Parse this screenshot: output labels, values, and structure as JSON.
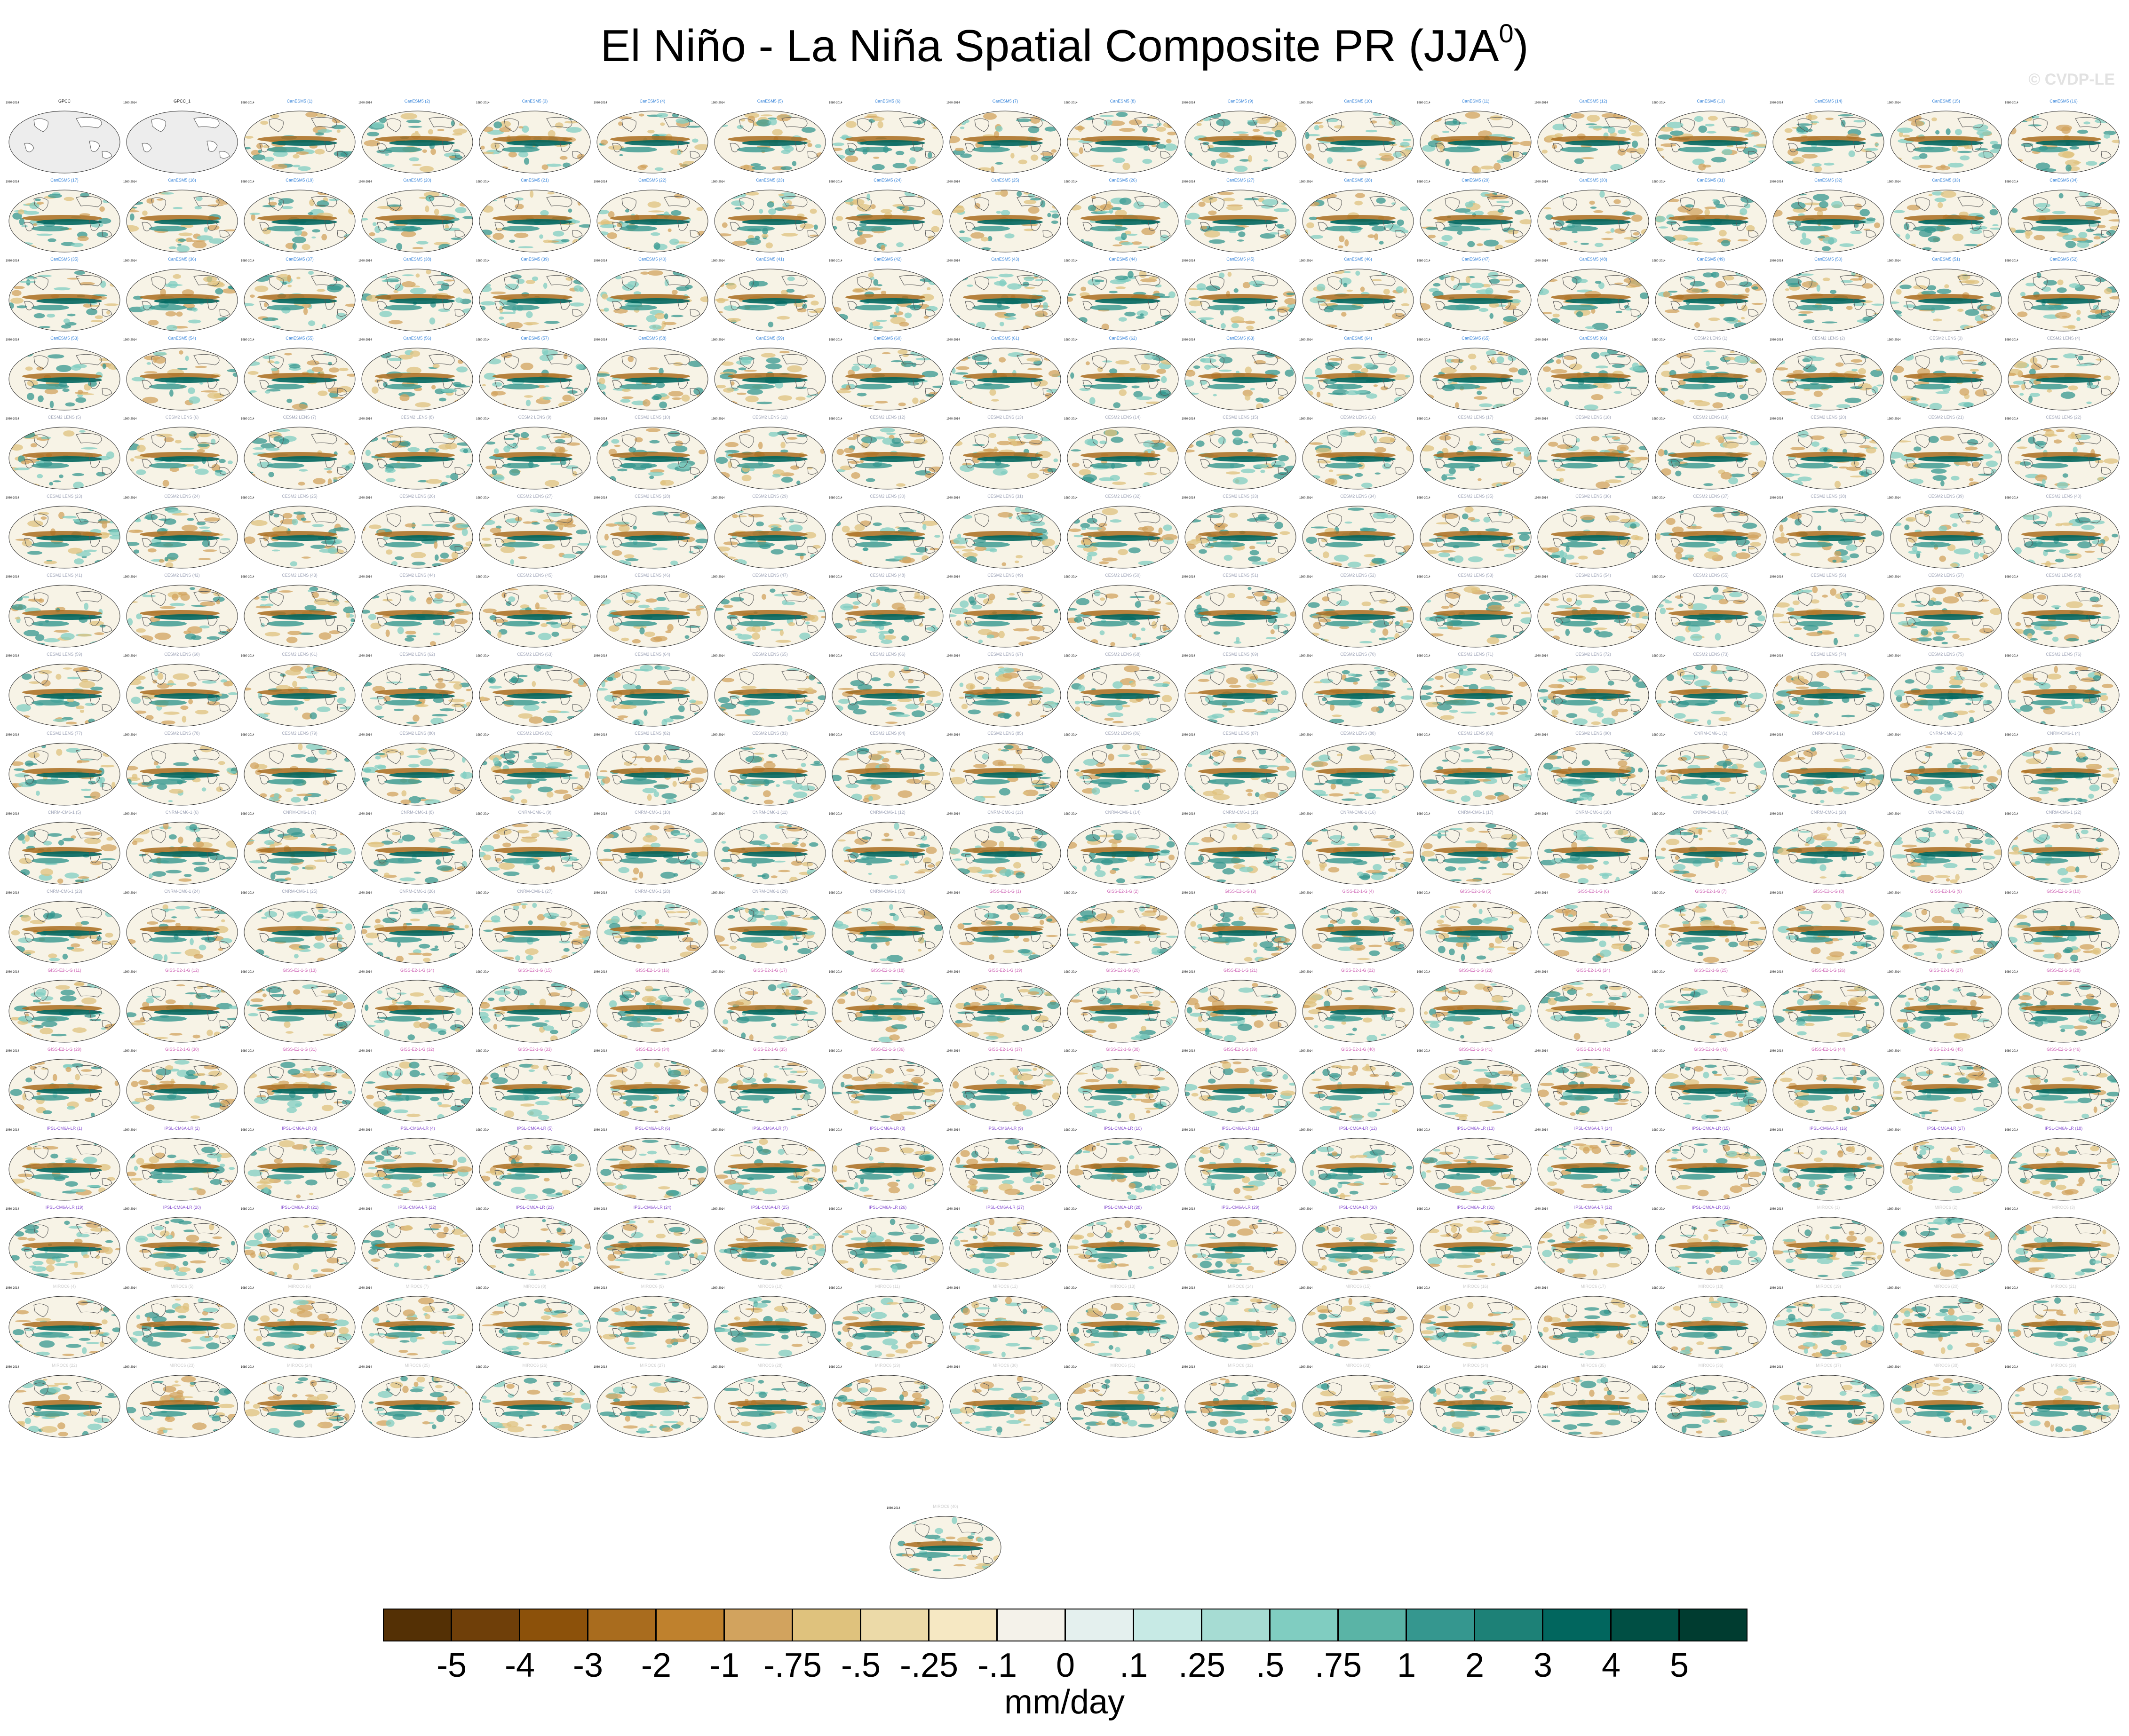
{
  "title": {
    "main": "El Niño - La Niña Spatial Composite PR (JJA",
    "superscript": "0",
    "close": ")"
  },
  "watermark": "© CVDP-LE",
  "panels": {
    "count": 307,
    "columns": 18,
    "obs_titles": [
      "GPCC",
      "GPCC_1"
    ],
    "period_label": "1980-2014",
    "model_groups": [
      {
        "name": "CanESM5",
        "color": "#2f7fd8",
        "count": 66
      },
      {
        "name": "CESM2 LENS",
        "color": "#9aa0b4",
        "count": 90
      },
      {
        "name": "CNRM-CM6-1",
        "color": "#9aa0b4",
        "count": 30
      },
      {
        "name": "GISS-E2-1-G",
        "color": "#d06bb8",
        "count": 46
      },
      {
        "name": "IPSL-CM6A-LR",
        "color": "#8a54d0",
        "count": 33
      },
      {
        "name": "MIROC6",
        "color": "#cfcfcf",
        "count": 40
      }
    ]
  },
  "chart_data": {
    "type": "heatmap",
    "title": "El Niño - La Niña Spatial Composite PR (JJA0)",
    "variable": "PR",
    "season": "JJA",
    "units": "mm/day",
    "map_projection": "Robinson, Pacific-centered",
    "colorbar": {
      "ticks": [
        "-5",
        "-4",
        "-3",
        "-2",
        "-1",
        "-.75",
        "-.5",
        "-.25",
        "-.1",
        "0",
        ".1",
        ".25",
        ".5",
        ".75",
        "1",
        "2",
        "3",
        "4",
        "5"
      ],
      "levels": [
        -5,
        -4,
        -3,
        -2,
        -1,
        -0.75,
        -0.5,
        -0.25,
        -0.1,
        0,
        0.1,
        0.25,
        0.5,
        0.75,
        1,
        2,
        3,
        4,
        5
      ],
      "colors": [
        "#543005",
        "#6f3f09",
        "#8c510a",
        "#a96c1e",
        "#bf812d",
        "#d2a35e",
        "#dfc27d",
        "#ecdaa8",
        "#f6e8c3",
        "#f4f2ea",
        "#e4f0ee",
        "#c7eae5",
        "#a6dcd3",
        "#80cdc1",
        "#5ab4a6",
        "#35978f",
        "#1d8177",
        "#01665e",
        "#004f44",
        "#003c30"
      ]
    }
  }
}
